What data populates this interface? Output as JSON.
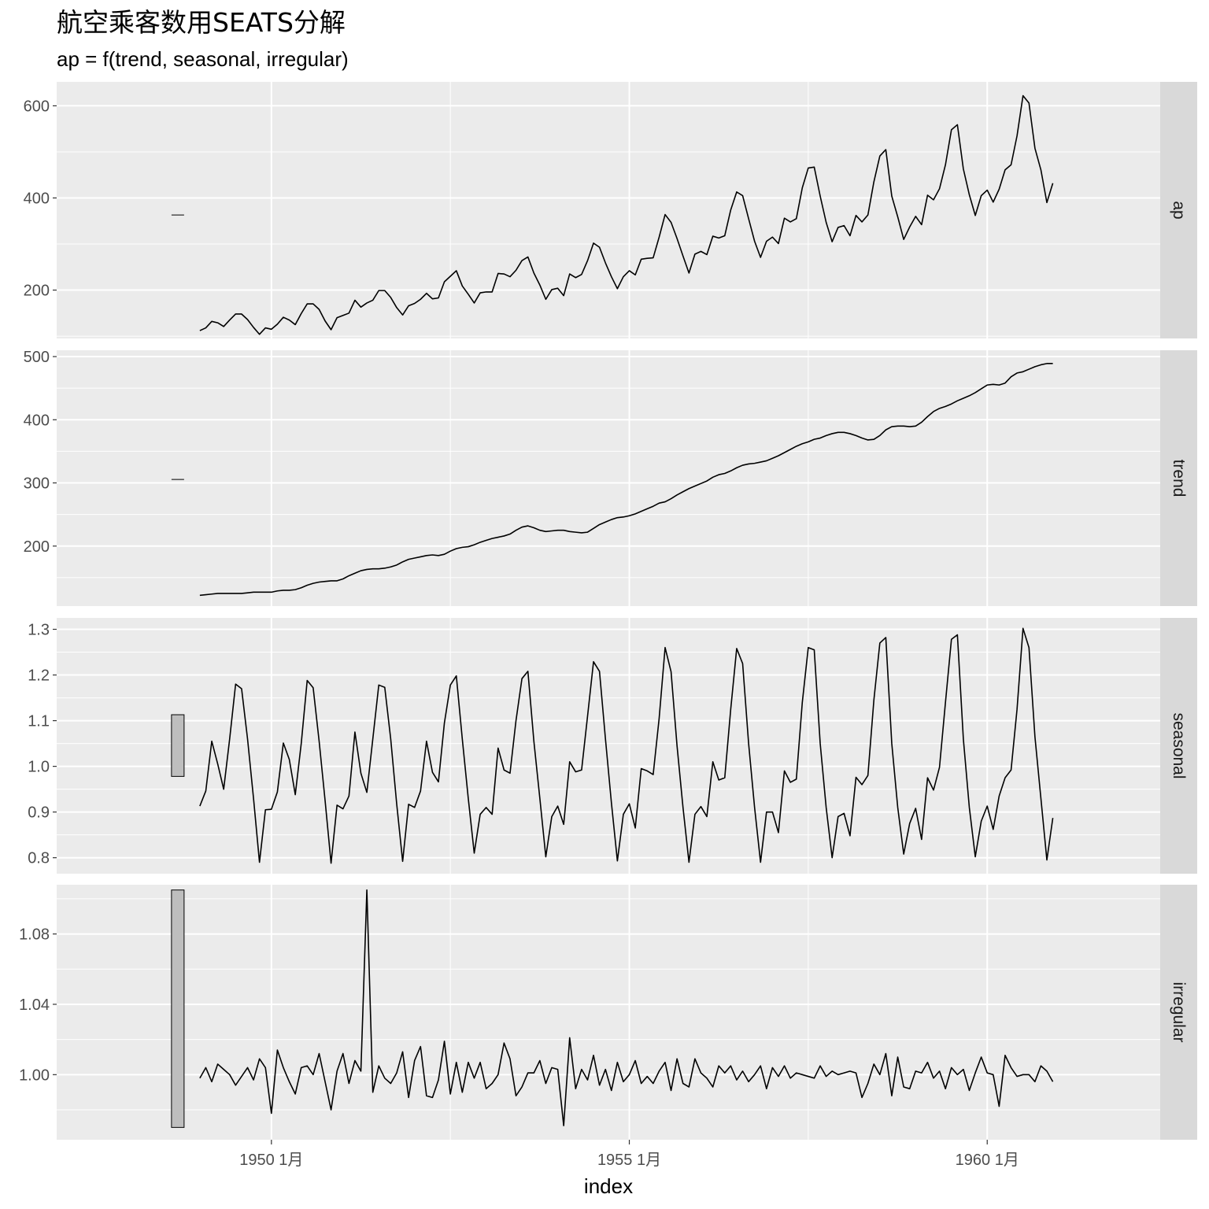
{
  "chart_data": {
    "type": "line",
    "title": "航空乘客数用SEATS分解",
    "subtitle": "ap = f(trend, seasonal, irregular)",
    "xlabel": "index",
    "x_ticks": [
      "1950 1月",
      "1955 1月",
      "1960 1月"
    ],
    "x_start": "1949-01",
    "x_end": "1960-12",
    "frequency": "monthly",
    "xlim": [
      "1947-01",
      "1962-06"
    ],
    "line_color": "#000000",
    "panel_background": "#ebebeb",
    "strip_background": "#d9d9d9",
    "range_bar_color": "#bebebe",
    "panels": [
      {
        "name": "ap",
        "ylim": [
          95,
          652
        ],
        "y_ticks": [
          200,
          400,
          600
        ],
        "range_bar": [
          362,
          364
        ],
        "values": [
          112,
          118,
          132,
          129,
          121,
          135,
          148,
          148,
          136,
          119,
          104,
          118,
          115,
          126,
          141,
          135,
          125,
          149,
          170,
          170,
          158,
          133,
          114,
          140,
          145,
          150,
          178,
          163,
          172,
          178,
          199,
          199,
          184,
          162,
          146,
          166,
          171,
          180,
          193,
          181,
          183,
          218,
          230,
          242,
          209,
          191,
          172,
          194,
          196,
          196,
          236,
          235,
          229,
          243,
          264,
          272,
          237,
          211,
          180,
          201,
          204,
          188,
          235,
          227,
          234,
          264,
          302,
          293,
          259,
          229,
          203,
          229,
          242,
          233,
          267,
          269,
          270,
          315,
          364,
          347,
          312,
          274,
          237,
          278,
          284,
          277,
          317,
          313,
          318,
          374,
          413,
          405,
          355,
          306,
          271,
          306,
          315,
          301,
          356,
          348,
          355,
          422,
          465,
          467,
          404,
          347,
          305,
          336,
          340,
          318,
          362,
          348,
          363,
          435,
          491,
          505,
          404,
          359,
          310,
          337,
          360,
          342,
          406,
          396,
          420,
          472,
          548,
          559,
          463,
          407,
          362,
          405,
          417,
          391,
          419,
          461,
          472,
          535,
          622,
          606,
          508,
          461,
          390,
          432
        ]
      },
      {
        "name": "trend",
        "ylim": [
          105,
          510
        ],
        "y_ticks": [
          200,
          300,
          400,
          500
        ],
        "range_bar": [
          305,
          306
        ],
        "values": [
          122,
          123,
          124,
          125,
          125,
          125,
          125,
          125,
          126,
          127,
          127,
          127,
          127,
          129,
          130,
          130,
          131,
          134,
          138,
          141,
          143,
          144,
          145,
          145,
          148,
          153,
          157,
          161,
          163,
          164,
          164,
          165,
          167,
          170,
          175,
          179,
          181,
          183,
          185,
          186,
          185,
          187,
          192,
          196,
          198,
          199,
          202,
          206,
          209,
          212,
          214,
          216,
          219,
          225,
          230,
          232,
          229,
          225,
          223,
          224,
          225,
          225,
          223,
          222,
          221,
          222,
          228,
          234,
          238,
          242,
          245,
          246,
          248,
          251,
          255,
          259,
          263,
          268,
          270,
          275,
          281,
          286,
          291,
          295,
          299,
          303,
          309,
          313,
          315,
          319,
          324,
          328,
          330,
          331,
          333,
          335,
          339,
          343,
          348,
          353,
          358,
          362,
          365,
          369,
          371,
          375,
          378,
          380,
          380,
          378,
          375,
          371,
          368,
          369,
          375,
          384,
          389,
          390,
          390,
          389,
          390,
          396,
          405,
          413,
          418,
          421,
          425,
          430,
          434,
          438,
          443,
          449,
          455,
          456,
          455,
          458,
          468,
          474,
          476,
          480,
          484,
          487,
          489,
          489
        ]
      },
      {
        "name": "seasonal",
        "ylim": [
          0.765,
          1.325
        ],
        "y_ticks": [
          0.8,
          0.9,
          1.0,
          1.1,
          1.2,
          1.3
        ],
        "range_bar": [
          0.978,
          1.113
        ],
        "values": [
          0.913,
          0.946,
          1.055,
          1.005,
          0.95,
          1.06,
          1.18,
          1.17,
          1.06,
          0.93,
          0.79,
          0.905,
          0.906,
          0.944,
          1.051,
          1.015,
          0.938,
          1.05,
          1.188,
          1.172,
          1.055,
          0.925,
          0.788,
          0.915,
          0.907,
          0.935,
          1.075,
          0.985,
          0.943,
          1.06,
          1.178,
          1.173,
          1.06,
          0.918,
          0.792,
          0.917,
          0.91,
          0.946,
          1.055,
          0.987,
          0.966,
          1.095,
          1.178,
          1.198,
          1.06,
          0.93,
          0.81,
          0.895,
          0.91,
          0.895,
          1.04,
          0.992,
          0.985,
          1.1,
          1.192,
          1.208,
          1.055,
          0.93,
          0.802,
          0.89,
          0.913,
          0.873,
          1.01,
          0.988,
          0.992,
          1.11,
          1.229,
          1.208,
          1.06,
          0.92,
          0.793,
          0.895,
          0.918,
          0.865,
          0.995,
          0.99,
          0.982,
          1.105,
          1.26,
          1.207,
          1.045,
          0.91,
          0.79,
          0.895,
          0.912,
          0.89,
          1.01,
          0.97,
          0.975,
          1.125,
          1.258,
          1.225,
          1.05,
          0.91,
          0.79,
          0.9,
          0.9,
          0.855,
          0.99,
          0.965,
          0.972,
          1.14,
          1.26,
          1.255,
          1.05,
          0.91,
          0.8,
          0.89,
          0.897,
          0.848,
          0.976,
          0.96,
          0.98,
          1.145,
          1.27,
          1.282,
          1.05,
          0.91,
          0.808,
          0.875,
          0.908,
          0.84,
          0.975,
          0.948,
          0.998,
          1.14,
          1.278,
          1.288,
          1.06,
          0.91,
          0.802,
          0.88,
          0.913,
          0.862,
          0.935,
          0.975,
          0.992,
          1.125,
          1.302,
          1.26,
          1.065,
          0.93,
          0.795,
          0.887
        ]
      },
      {
        "name": "irregular",
        "ylim": [
          0.963,
          1.108
        ],
        "y_ticks": [
          1.0,
          1.04,
          1.08
        ],
        "range_bar": [
          0.97,
          1.105
        ],
        "values": [
          0.998,
          1.004,
          0.996,
          1.006,
          1.003,
          1.0,
          0.994,
          0.999,
          1.004,
          0.997,
          1.009,
          1.004,
          0.978,
          1.014,
          1.004,
          0.996,
          0.989,
          1.004,
          1.005,
          1.0,
          1.012,
          0.996,
          0.98,
          1.002,
          1.012,
          0.995,
          1.008,
          1.002,
          1.105,
          0.99,
          1.005,
          0.998,
          0.995,
          1.001,
          1.013,
          0.987,
          1.008,
          1.016,
          0.988,
          0.987,
          0.997,
          1.019,
          0.989,
          1.007,
          0.99,
          1.007,
          0.998,
          1.007,
          0.992,
          0.995,
          1.0,
          1.018,
          1.009,
          0.988,
          0.993,
          1.001,
          1.001,
          1.008,
          0.995,
          1.004,
          1.003,
          0.971,
          1.021,
          0.992,
          1.003,
          0.997,
          1.011,
          0.994,
          1.003,
          0.991,
          1.007,
          0.996,
          1.0,
          1.008,
          0.995,
          0.999,
          0.995,
          1.002,
          1.007,
          0.991,
          1.009,
          0.995,
          0.993,
          1.009,
          1.001,
          0.998,
          0.993,
          1.005,
          1.001,
          1.005,
          0.997,
          1.002,
          0.996,
          1.0,
          1.005,
          0.992,
          1.004,
          0.999,
          1.005,
          0.998,
          1.001,
          1.0,
          0.999,
          0.998,
          1.005,
          0.999,
          1.002,
          1.0,
          1.001,
          1.002,
          1.001,
          0.987,
          0.995,
          1.006,
          1.0,
          1.012,
          0.988,
          1.01,
          0.993,
          0.992,
          1.002,
          1.001,
          1.007,
          0.998,
          1.002,
          0.992,
          1.004,
          1.0,
          1.003,
          0.991,
          1.001,
          1.01,
          1.001,
          1.0,
          0.982,
          1.011,
          1.004,
          0.999,
          1.0,
          1.0,
          0.996,
          1.005,
          1.002,
          0.996
        ]
      }
    ]
  }
}
